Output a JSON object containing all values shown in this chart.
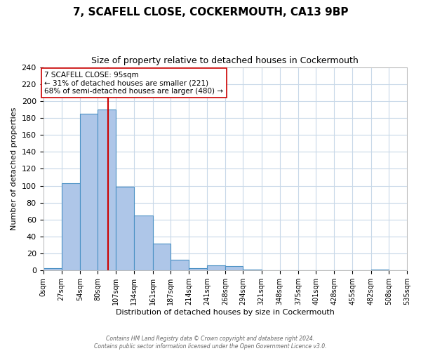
{
  "title": "7, SCAFELL CLOSE, COCKERMOUTH, CA13 9BP",
  "subtitle": "Size of property relative to detached houses in Cockermouth",
  "xlabel": "Distribution of detached houses by size in Cockermouth",
  "ylabel": "Number of detached properties",
  "bin_edges": [
    0,
    27,
    54,
    80,
    107,
    134,
    161,
    187,
    214,
    241,
    268,
    294,
    321,
    348,
    375,
    401,
    428,
    455,
    482,
    508,
    535
  ],
  "bin_labels": [
    "0sqm",
    "27sqm",
    "54sqm",
    "80sqm",
    "107sqm",
    "134sqm",
    "161sqm",
    "187sqm",
    "214sqm",
    "241sqm",
    "268sqm",
    "294sqm",
    "321sqm",
    "348sqm",
    "375sqm",
    "401sqm",
    "428sqm",
    "455sqm",
    "482sqm",
    "508sqm",
    "535sqm"
  ],
  "counts": [
    3,
    103,
    185,
    190,
    99,
    65,
    32,
    13,
    3,
    6,
    5,
    1,
    0,
    0,
    0,
    0,
    0,
    0,
    1,
    0
  ],
  "bar_color": "#aec6e8",
  "bar_edge_color": "#4a90c4",
  "property_value": 95,
  "property_line_color": "#cc0000",
  "annotation_title": "7 SCAFELL CLOSE: 95sqm",
  "annotation_line1": "← 31% of detached houses are smaller (221)",
  "annotation_line2": "68% of semi-detached houses are larger (480) →",
  "annotation_box_edge_color": "#cc0000",
  "ylim": [
    0,
    240
  ],
  "yticks": [
    0,
    20,
    40,
    60,
    80,
    100,
    120,
    140,
    160,
    180,
    200,
    220,
    240
  ],
  "footer_line1": "Contains HM Land Registry data © Crown copyright and database right 2024.",
  "footer_line2": "Contains public sector information licensed under the Open Government Licence v3.0.",
  "background_color": "#ffffff",
  "grid_color": "#c8d8e8",
  "title_fontsize": 11,
  "subtitle_fontsize": 9,
  "ylabel_fontsize": 8,
  "xlabel_fontsize": 8,
  "tick_fontsize": 7,
  "footer_fontsize": 5.5,
  "annotation_fontsize": 7.5
}
